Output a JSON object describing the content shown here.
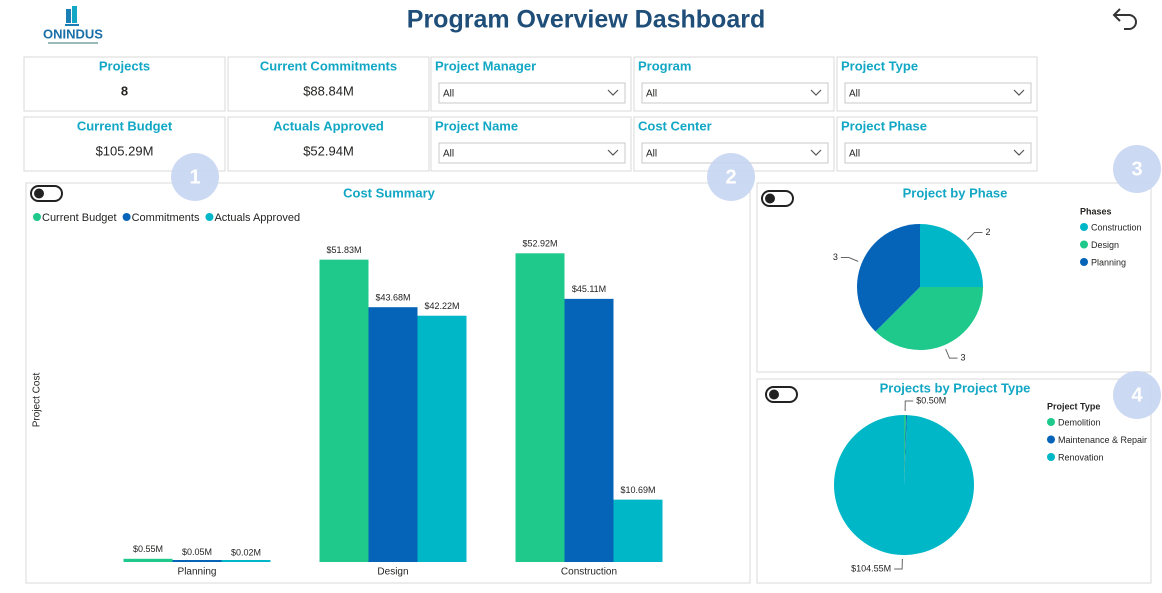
{
  "header": {
    "logo": "ONINDUS",
    "title": "Program Overview Dashboard"
  },
  "kpis": [
    {
      "label": "Projects",
      "value": "8"
    },
    {
      "label": "Current Commitments",
      "value": "$88.84M"
    },
    {
      "label": "Current Budget",
      "value": "$105.29M"
    },
    {
      "label": "Actuals Approved",
      "value": "$52.94M"
    }
  ],
  "filters": [
    {
      "label": "Project Manager",
      "selected": "All"
    },
    {
      "label": "Program",
      "selected": "All"
    },
    {
      "label": "Project Type",
      "selected": "All"
    },
    {
      "label": "Project Name",
      "selected": "All"
    },
    {
      "label": "Cost Center",
      "selected": "All"
    },
    {
      "label": "Project Phase",
      "selected": "All"
    }
  ],
  "badges": [
    "1",
    "2",
    "3",
    "4"
  ],
  "chart_data": [
    {
      "type": "bar",
      "title": "Cost Summary",
      "y_label": "Project Cost",
      "categories": [
        "Planning",
        "Design",
        "Construction"
      ],
      "series": [
        {
          "name": "Current Budget",
          "color": "#1ec98b",
          "values": [
            0.55,
            51.83,
            52.92
          ],
          "value_labels": [
            "$0.55M",
            "$51.83M",
            "$52.92M"
          ]
        },
        {
          "name": "Commitments",
          "color": "#0563b8",
          "values": [
            0.05,
            43.68,
            45.11
          ],
          "value_labels": [
            "$0.05M",
            "$43.68M",
            "$45.11M"
          ]
        },
        {
          "name": "Actuals Approved",
          "color": "#00b7c8",
          "values": [
            0.02,
            42.22,
            10.69
          ],
          "value_labels": [
            "$0.02M",
            "$42.22M",
            "$10.69M"
          ]
        }
      ],
      "ylim": [
        0,
        60
      ]
    },
    {
      "type": "pie",
      "title": "Project by Phase",
      "legend_title": "Phases",
      "categories": [
        "Construction",
        "Design",
        "Planning"
      ],
      "values": [
        2,
        3,
        3
      ],
      "colors": [
        "#00b7c8",
        "#1ec98b",
        "#0563b8"
      ]
    },
    {
      "type": "pie",
      "title": "Projects by Project Type",
      "legend_title": "Project Type",
      "categories": [
        "Demolition",
        "Maintenance & Repair",
        "Renovation"
      ],
      "values": [
        0.5,
        0.24,
        104.55
      ],
      "value_labels": [
        "$0.50M",
        null,
        "$104.55M"
      ],
      "colors": [
        "#1ec98b",
        "#0563b8",
        "#00b7c8"
      ]
    }
  ]
}
